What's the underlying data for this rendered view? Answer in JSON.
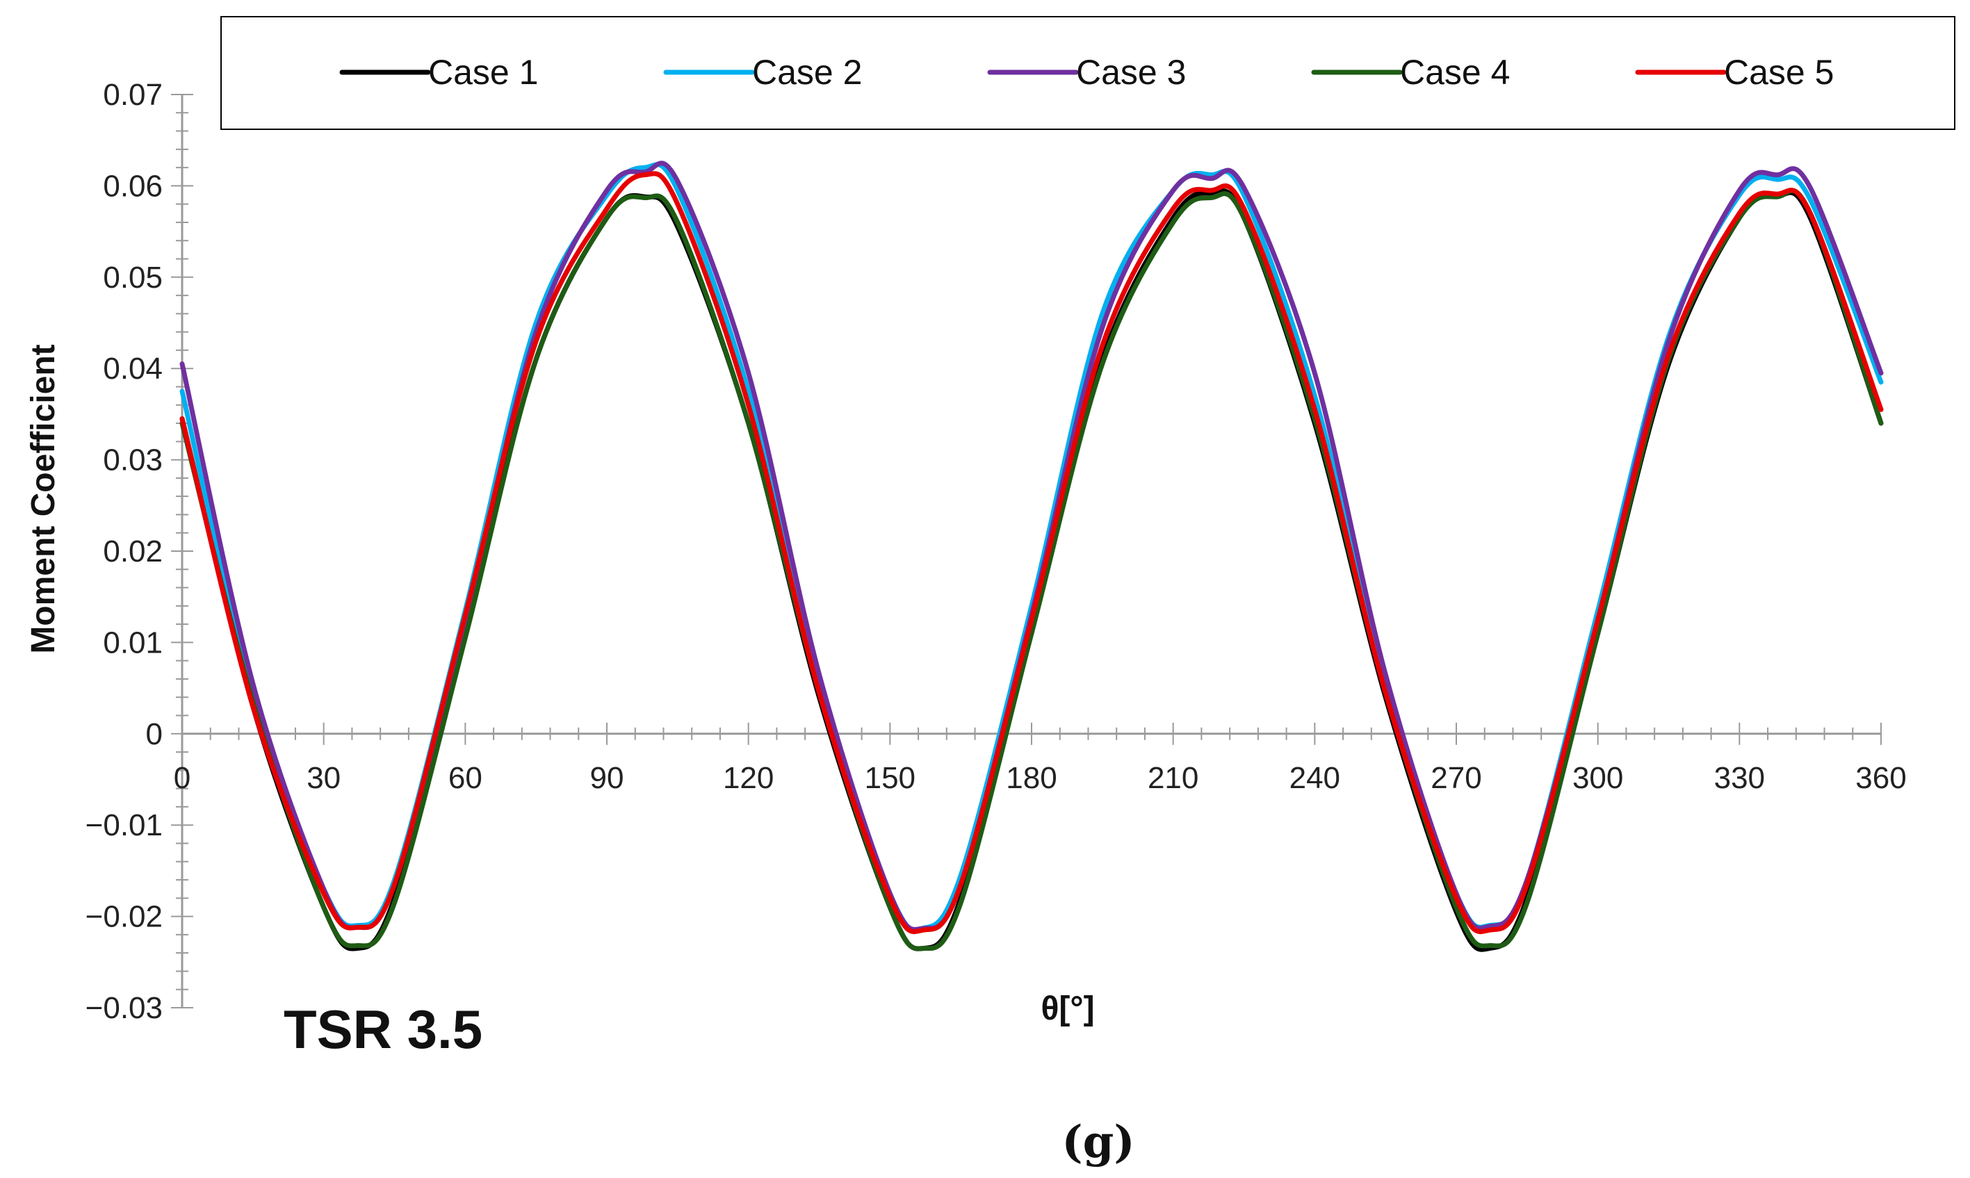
{
  "chart_data": {
    "type": "line",
    "title": "",
    "xlabel": "θ[°]",
    "ylabel": "Moment Coefficient",
    "annotation": "TSR 3.5",
    "caption": "(g)",
    "xlim": [
      0,
      360
    ],
    "ylim": [
      -0.03,
      0.07
    ],
    "x_ticks": [
      0,
      30,
      60,
      90,
      120,
      150,
      180,
      210,
      240,
      270,
      300,
      330,
      360
    ],
    "x_tick_labels": [
      "0",
      "30",
      "60",
      "90",
      "120",
      "150",
      "180",
      "210",
      "240",
      "270",
      "300",
      "330",
      "360"
    ],
    "y_ticks": [
      -0.03,
      -0.02,
      -0.01,
      0,
      0.01,
      0.02,
      0.03,
      0.04,
      0.05,
      0.06,
      0.07
    ],
    "y_tick_labels": [
      "−0.03",
      "−0.02",
      "−0.01",
      "0",
      "0.01",
      "0.02",
      "0.03",
      "0.04",
      "0.05",
      "0.06",
      "0.07"
    ],
    "grid": false,
    "legend_position": "top",
    "x": [
      0,
      15,
      30,
      37,
      45,
      60,
      75,
      90,
      98,
      105,
      120,
      135,
      150,
      157,
      165,
      180,
      195,
      210,
      218,
      225,
      240,
      255,
      270,
      277,
      285,
      300,
      315,
      330,
      338,
      345,
      360
    ],
    "series": [
      {
        "name": "Case 1",
        "color": "#000000",
        "values": [
          0.0345,
          0.003,
          -0.019,
          -0.0235,
          -0.018,
          0.011,
          0.041,
          0.0565,
          0.0588,
          0.0555,
          0.034,
          0.004,
          -0.019,
          -0.0235,
          -0.018,
          0.0115,
          0.041,
          0.0565,
          0.0592,
          0.0565,
          0.034,
          0.004,
          -0.0195,
          -0.0235,
          -0.018,
          0.011,
          0.0405,
          0.0565,
          0.0589,
          0.0565,
          0.034
        ]
      },
      {
        "name": "Case 2",
        "color": "#00b0f0",
        "values": [
          0.0375,
          0.004,
          -0.017,
          -0.021,
          -0.016,
          0.0135,
          0.045,
          0.059,
          0.062,
          0.0595,
          0.0375,
          0.0055,
          -0.0175,
          -0.0213,
          -0.0155,
          0.014,
          0.046,
          0.0595,
          0.0612,
          0.059,
          0.037,
          0.0055,
          -0.0175,
          -0.021,
          -0.016,
          0.0135,
          0.0435,
          0.059,
          0.0607,
          0.0585,
          0.0385
        ]
      },
      {
        "name": "Case 3",
        "color": "#7030a0",
        "values": [
          0.0405,
          0.0055,
          -0.017,
          -0.0212,
          -0.0165,
          0.0125,
          0.044,
          0.0595,
          0.0615,
          0.0605,
          0.0395,
          0.0065,
          -0.0175,
          -0.0213,
          -0.0165,
          0.013,
          0.0445,
          0.0595,
          0.0608,
          0.0598,
          0.0395,
          0.0065,
          -0.0175,
          -0.0211,
          -0.016,
          0.0125,
          0.043,
          0.0595,
          0.0612,
          0.0598,
          0.0395
        ]
      },
      {
        "name": "Case 4",
        "color": "#1e5c14",
        "values": [
          0.034,
          0.0035,
          -0.019,
          -0.0232,
          -0.0185,
          0.0105,
          0.041,
          0.0565,
          0.0587,
          0.056,
          0.034,
          0.0045,
          -0.019,
          -0.0235,
          -0.0185,
          0.011,
          0.0405,
          0.056,
          0.0587,
          0.0565,
          0.0345,
          0.0045,
          -0.019,
          -0.0232,
          -0.0185,
          0.011,
          0.041,
          0.0565,
          0.0588,
          0.057,
          0.034
        ]
      },
      {
        "name": "Case 5",
        "color": "#e60000",
        "values": [
          0.0345,
          0.003,
          -0.0175,
          -0.0212,
          -0.0165,
          0.013,
          0.043,
          0.0575,
          0.0612,
          0.058,
          0.036,
          0.0045,
          -0.018,
          -0.0215,
          -0.0165,
          0.0125,
          0.0425,
          0.0575,
          0.0595,
          0.0575,
          0.0355,
          0.0045,
          -0.018,
          -0.0215,
          -0.0165,
          0.0125,
          0.0415,
          0.057,
          0.0591,
          0.057,
          0.0355
        ]
      }
    ]
  }
}
